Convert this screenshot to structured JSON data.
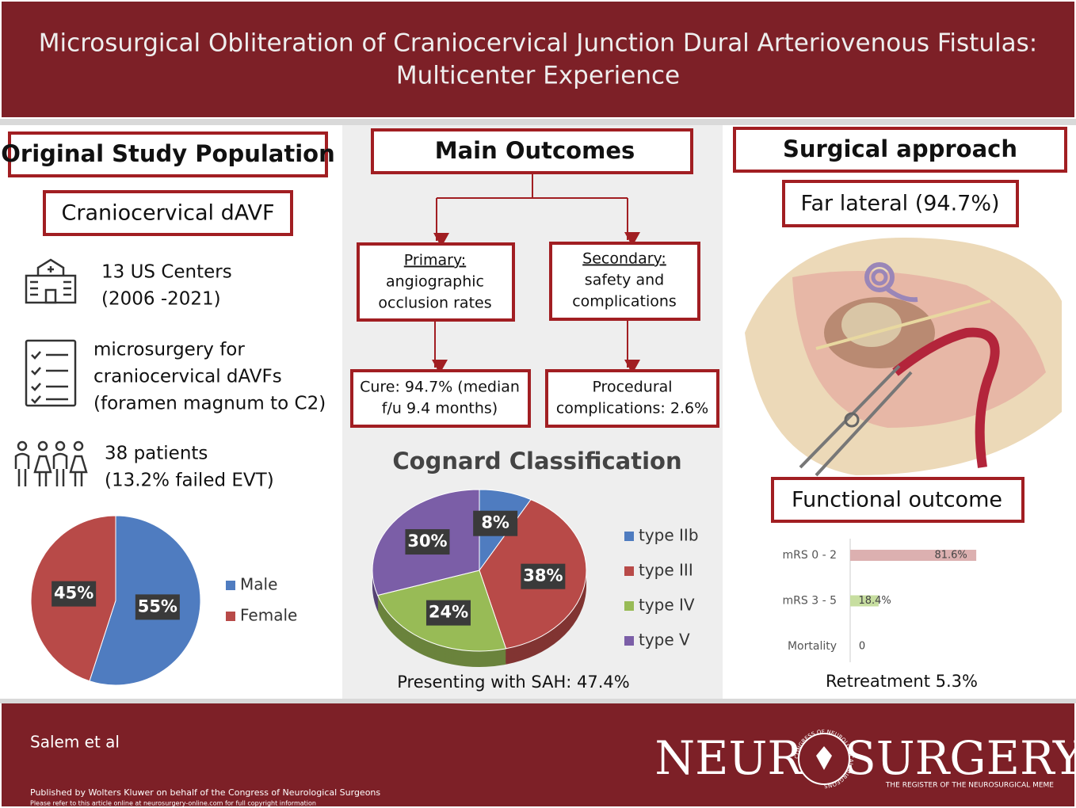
{
  "header": {
    "title_lines": [
      "Microsurgical Obliteration of Craniocervical Junction Dural Arteriovenous Fistulas:",
      "Multicenter Experience"
    ]
  },
  "left": {
    "heading": "Original Study Population",
    "box": "Craniocervical dAVF",
    "items": [
      {
        "lines": [
          "13 US Centers",
          "(2006 -2021)"
        ]
      },
      {
        "lines": [
          "microsurgery for",
          "craniocervical dAVFs",
          "(foramen magnum to C2)"
        ]
      },
      {
        "lines": [
          "38 patients",
          "(13.2% failed EVT)"
        ]
      }
    ]
  },
  "middle": {
    "heading": "Main Outcomes",
    "primary": {
      "label": "Primary:",
      "lines": [
        "angiographic",
        "occlusion rates"
      ]
    },
    "secondary": {
      "label": "Secondary:",
      "lines": [
        "safety and",
        "complications"
      ]
    },
    "primary_result": [
      "Cure: 94.7% (median",
      "f/u 9.4 months)"
    ],
    "secondary_result": [
      "Procedural",
      "complications: 2.6%"
    ]
  },
  "right": {
    "heading": "Surgical approach",
    "approach": "Far lateral (94.7%)"
  },
  "chart_data": [
    {
      "type": "pie",
      "categories": [
        "Male",
        "Female"
      ],
      "values": [
        55,
        45
      ],
      "value_labels": [
        "55%",
        "45%"
      ],
      "colors": [
        "#4f7cc0",
        "#b84a48"
      ]
    },
    {
      "type": "pie3d",
      "title": "Cognard Classification",
      "categories": [
        "type IIb",
        "type III",
        "type IV",
        "type V"
      ],
      "values": [
        8,
        38,
        24,
        30
      ],
      "value_labels": [
        "8%",
        "38%",
        "24%",
        "30%"
      ],
      "colors": [
        "#4f7cc0",
        "#b84a48",
        "#98bb56",
        "#7b5ea7"
      ],
      "caption": "Presenting with SAH: 47.4%"
    },
    {
      "type": "bar",
      "orientation": "horizontal",
      "title": "Functional outcome",
      "categories": [
        "mRS 0 - 2",
        "mRS 3 - 5",
        "Mortality"
      ],
      "values": [
        81.6,
        18.4,
        0
      ],
      "value_labels": [
        "81.6%",
        "18.4%",
        "0"
      ],
      "colors": [
        "#dcb0b0",
        "#c7dea0",
        "#cccccc"
      ],
      "xlim": [
        0,
        100
      ],
      "caption": "Retreatment 5.3%"
    }
  ],
  "footer": {
    "author": "Salem et al",
    "publisher": "Published by Wolters Kluwer on behalf of the Congress of Neurological Surgeons",
    "copyright": "Please refer to this article online at neurosurgery-online.com for full copyright information",
    "logo_left": "NEUR",
    "logo_right": "SURGERY",
    "seal": "CONGRESS OF NEUROLOGICAL SURGEONS",
    "tagline": "THE REGISTER OF THE NEUROSURGICAL MEME"
  }
}
